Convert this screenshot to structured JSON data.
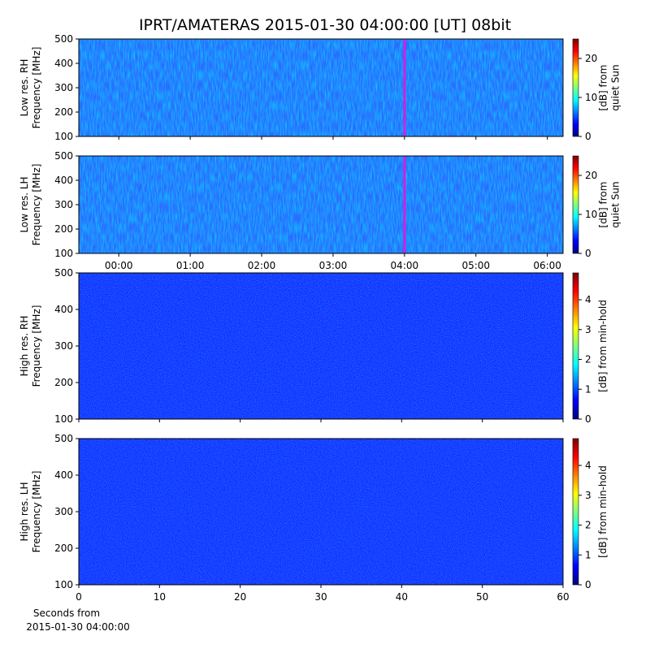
{
  "title": "IPRT/AMATERAS 2015-01-30 04:00:00 [UT]   08bit",
  "xlabel": [
    "Seconds from",
    "2015-01-30 04:00:00"
  ],
  "chart_data": [
    {
      "type": "spectrogram",
      "ylabel": [
        "Low res. RH",
        "Frequency [MHz]"
      ],
      "ylim": [
        100,
        500
      ],
      "yticks": [
        100,
        200,
        300,
        400,
        500
      ],
      "xlim": [
        -0.56,
        6.22
      ],
      "marker_x": 4,
      "marker_color": "#d020e0",
      "clabel": [
        "[dB] from",
        "quiet Sun"
      ],
      "clim": [
        0,
        25
      ],
      "cticks": [
        0,
        10,
        20
      ]
    },
    {
      "type": "spectrogram",
      "ylabel": [
        "Low res. LH",
        "Frequency [MHz]"
      ],
      "ylim": [
        100,
        500
      ],
      "yticks": [
        100,
        200,
        300,
        400,
        500
      ],
      "xlim": [
        -0.56,
        6.22
      ],
      "marker_x": 4,
      "marker_color": "#d020e0",
      "xticks": [
        {
          "value": 0,
          "label": "00:00"
        },
        {
          "value": 1,
          "label": "01:00"
        },
        {
          "value": 2,
          "label": "02:00"
        },
        {
          "value": 3,
          "label": "03:00"
        },
        {
          "value": 4,
          "label": "04:00"
        },
        {
          "value": 5,
          "label": "05:00"
        },
        {
          "value": 6,
          "label": "06:00"
        }
      ],
      "clabel": [
        "[dB] from",
        "quiet Sun"
      ],
      "clim": [
        0,
        25
      ],
      "cticks": [
        0,
        10,
        20
      ]
    },
    {
      "type": "spectrogram",
      "ylabel": [
        "High res. RH",
        "Frequency [MHz]"
      ],
      "ylim": [
        100,
        500
      ],
      "yticks": [
        100,
        200,
        300,
        400,
        500
      ],
      "xlim": [
        0,
        60
      ],
      "clabel": [
        "[dB] from min-hold"
      ],
      "clim": [
        0,
        4.9
      ],
      "cticks": [
        0,
        1,
        2,
        3,
        4
      ]
    },
    {
      "type": "spectrogram",
      "ylabel": [
        "High res. LH",
        "Frequency [MHz]"
      ],
      "ylim": [
        100,
        500
      ],
      "yticks": [
        100,
        200,
        300,
        400,
        500
      ],
      "xlim": [
        0,
        60
      ],
      "xticks": [
        0,
        10,
        20,
        30,
        40,
        50,
        60
      ],
      "clabel": [
        "[dB] from min-hold"
      ],
      "clim": [
        0,
        4.9
      ],
      "cticks": [
        0,
        1,
        2,
        3,
        4
      ]
    }
  ]
}
